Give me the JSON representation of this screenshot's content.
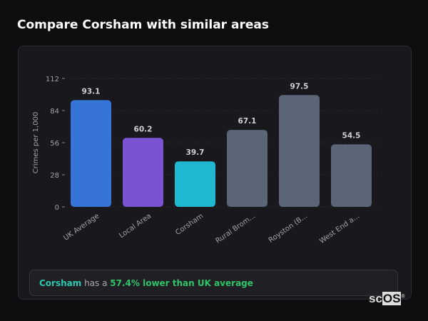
{
  "header": {
    "title": "Compare Corsham with similar areas"
  },
  "chart_data": {
    "type": "bar",
    "categories": [
      "UK Average",
      "Local Area",
      "Corsham",
      "Rural Brom...",
      "Royston (B...",
      "West End a..."
    ],
    "values": [
      93.1,
      60.2,
      39.7,
      67.1,
      97.5,
      54.5
    ],
    "colors": [
      "#3674d8",
      "#7a52d4",
      "#20b8d0",
      "#5a6578",
      "#5a6578",
      "#5a6578"
    ],
    "ylabel": "Crimes per 1,000",
    "yticks": [
      0,
      28,
      56,
      84,
      112
    ],
    "ylim": [
      0,
      112
    ],
    "grid": true
  },
  "summary": {
    "area": "Corsham",
    "middle": " has a ",
    "result": "57.4% lower than UK average"
  },
  "logo": {
    "text": "scOS"
  }
}
